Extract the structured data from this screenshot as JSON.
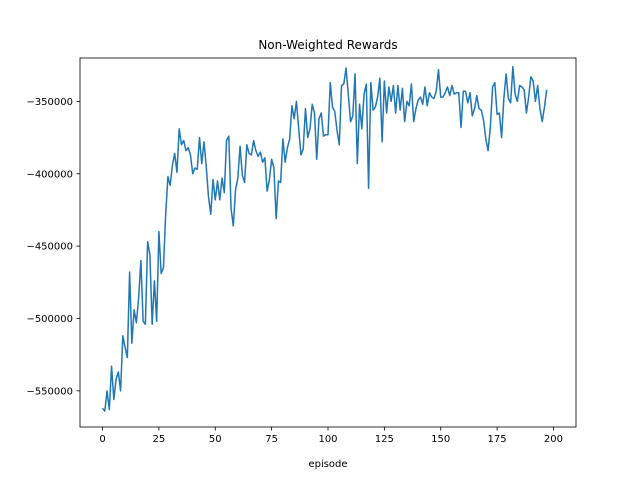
{
  "chart_data": {
    "type": "line",
    "title": "Non-Weighted Rewards",
    "xlabel": "episode",
    "ylabel": "",
    "xlim": [
      -10,
      210
    ],
    "ylim": [
      -575000,
      -320000
    ],
    "xticks": [
      0,
      25,
      50,
      75,
      100,
      125,
      150,
      175,
      200
    ],
    "yticks": [
      -550000,
      -500000,
      -450000,
      -400000,
      -350000
    ],
    "ytick_labels": [
      "−550000",
      "−500000",
      "−450000",
      "−400000",
      "−350000"
    ],
    "xtick_labels": [
      "0",
      "25",
      "50",
      "75",
      "100",
      "125",
      "150",
      "175",
      "200"
    ],
    "grid": false,
    "legend": "none",
    "color": "#1f77b4",
    "series": [
      {
        "values": [
          -562000,
          -564000,
          -550000,
          -563000,
          -533000,
          -556000,
          -542000,
          -537000,
          -550000,
          -512000,
          -520000,
          -527000,
          -468000,
          -517000,
          -494000,
          -503000,
          -486000,
          -460000,
          -502000,
          -504000,
          -447000,
          -456000,
          -504000,
          -474000,
          -502000,
          -440000,
          -469000,
          -465000,
          -428000,
          -402000,
          -408000,
          -394000,
          -386000,
          -399000,
          -369000,
          -380000,
          -377000,
          -384000,
          -382000,
          -387000,
          -400000,
          -396000,
          -397000,
          -375000,
          -393000,
          -378000,
          -395000,
          -416000,
          -428000,
          -404000,
          -418000,
          -405000,
          -418000,
          -403000,
          -413000,
          -377000,
          -374000,
          -424000,
          -436000,
          -411000,
          -403000,
          -381000,
          -401000,
          -406000,
          -380000,
          -386000,
          -387000,
          -377000,
          -384000,
          -388000,
          -385000,
          -392000,
          -389000,
          -412000,
          -404000,
          -390000,
          -396000,
          -431000,
          -405000,
          -406000,
          -376000,
          -392000,
          -382000,
          -376000,
          -353000,
          -362000,
          -350000,
          -369000,
          -387000,
          -383000,
          -355000,
          -375000,
          -369000,
          -352000,
          -358000,
          -390000,
          -362000,
          -358000,
          -374000,
          -373000,
          -373000,
          -337000,
          -354000,
          -357000,
          -370000,
          -380000,
          -339000,
          -338000,
          -327000,
          -345000,
          -364000,
          -360000,
          -331000,
          -393000,
          -352000,
          -369000,
          -345000,
          -338000,
          -410000,
          -337000,
          -356000,
          -354000,
          -347000,
          -334000,
          -378000,
          -336000,
          -358000,
          -340000,
          -350000,
          -339000,
          -358000,
          -339000,
          -356000,
          -341000,
          -364000,
          -350000,
          -353000,
          -338000,
          -364000,
          -355000,
          -349000,
          -347000,
          -352000,
          -340000,
          -353000,
          -344000,
          -347000,
          -348000,
          -343000,
          -328000,
          -347000,
          -347000,
          -344000,
          -340000,
          -346000,
          -339000,
          -345000,
          -344000,
          -344000,
          -368000,
          -343000,
          -343000,
          -351000,
          -344000,
          -360000,
          -355000,
          -346000,
          -355000,
          -356000,
          -363000,
          -376000,
          -384000,
          -368000,
          -340000,
          -337000,
          -359000,
          -358000,
          -375000,
          -348000,
          -331000,
          -348000,
          -351000,
          -326000,
          -345000,
          -350000,
          -339000,
          -340000,
          -342000,
          -358000,
          -347000,
          -333000,
          -336000,
          -350000,
          -339000,
          -355000,
          -364000,
          -354000,
          -342000
        ]
      }
    ]
  }
}
